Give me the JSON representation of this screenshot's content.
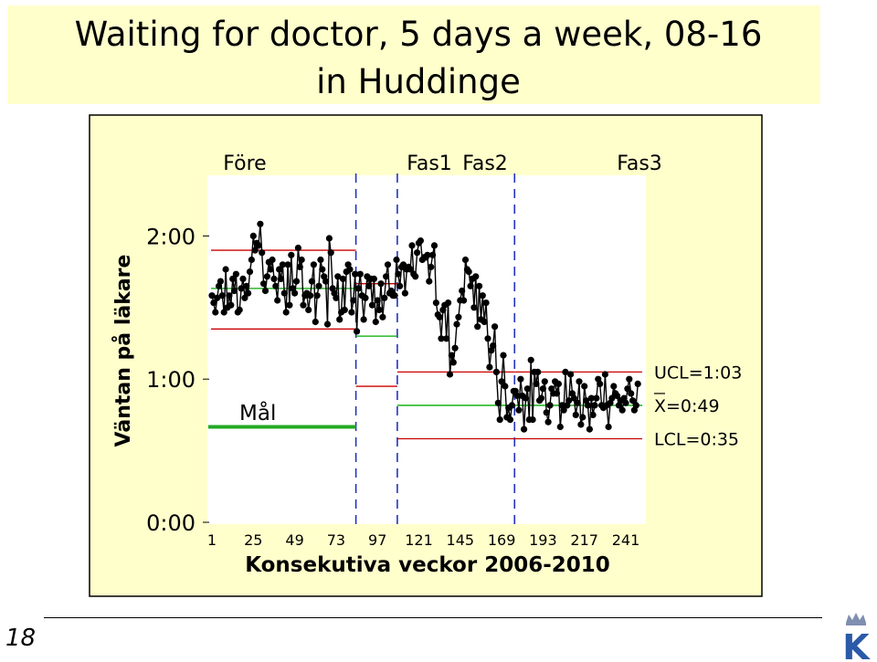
{
  "slide": {
    "title_line1": "Waiting for doctor, 5 days a week, 08-16",
    "title_line2": "in Huddinge",
    "page_number": "18",
    "logo_letter": "K"
  },
  "colors": {
    "panel_bg": "#ffffcc",
    "data_line": "#000000",
    "control_limit": "#cc0000",
    "center_line": "#00aa00",
    "goal_line": "#22aa22",
    "phase_divider": "#2233bb"
  },
  "chart_data": {
    "type": "line",
    "subtype": "control chart (I-chart) by phase",
    "xlabel": "Konsekutiva veckor 2006-2010",
    "ylabel": "Väntan på läkare",
    "x_range": [
      1,
      250
    ],
    "x_ticks": [
      1,
      25,
      49,
      73,
      97,
      121,
      145,
      169,
      193,
      217,
      241
    ],
    "y_range_minutes": [
      0,
      150
    ],
    "y_ticks": [
      {
        "value": 0,
        "label": "0:00"
      },
      {
        "value": 60,
        "label": "1:00"
      },
      {
        "value": 120,
        "label": "2:00"
      }
    ],
    "grid": false,
    "phases": [
      {
        "label": "Före",
        "start": 1,
        "end": 84,
        "ucl": 114,
        "cl": 98,
        "lcl": 81
      },
      {
        "label": "Fas1",
        "start": 85,
        "end": 108,
        "ucl": 100,
        "cl": 78,
        "lcl": 57
      },
      {
        "label": "Fas2",
        "start": 109,
        "end": 176,
        "ucl": 63,
        "cl": 49,
        "lcl": 35
      },
      {
        "label": "Fas3",
        "start": 177,
        "end": 250,
        "ucl": 63,
        "cl": 49,
        "lcl": 35
      }
    ],
    "limit_labels": [
      "UCL=1:03",
      "X=0:49",
      "LCL=0:35"
    ],
    "goal": {
      "label": "Mål",
      "value_minutes": 40,
      "x_start": 1,
      "x_end": 84
    },
    "series": [
      {
        "values": [
          95,
          92,
          88,
          94,
          99,
          101,
          95,
          88,
          106,
          90,
          95,
          91,
          102,
          97,
          104,
          88,
          89,
          98,
          102,
          94,
          99,
          96,
          105,
          110,
          120,
          114,
          117,
          116,
          125,
          113,
          100,
          97,
          103,
          109,
          106,
          110,
          102,
          99,
          93,
          106,
          102,
          108,
          96,
          88,
          108,
          91,
          112,
          98,
          96,
          101,
          115,
          107,
          110,
          91,
          95,
          96,
          89,
          95,
          101,
          108,
          84,
          95,
          99,
          110,
          106,
          103,
          101,
          83,
          119,
          113,
          98,
          96,
          94,
          103,
          85,
          88,
          102,
          89,
          105,
          108,
          106,
          88,
          93,
          104,
          80,
          98,
          104,
          95,
          85,
          94,
          103,
          99,
          102,
          91,
          102,
          84,
          93,
          89,
          100,
          86,
          94,
          103,
          108,
          96,
          97,
          95,
          95,
          110,
          104,
          99,
          107,
          108,
          96,
          106,
          107,
          106,
          116,
          104,
          103,
          113,
          117,
          118,
          110,
          111,
          111,
          112,
          101,
          107,
          112,
          116,
          92,
          87,
          86,
          77,
          89,
          91,
          77,
          92,
          62,
          70,
          67,
          73,
          83,
          86,
          93,
          97,
          93,
          110,
          106,
          105,
          99,
          102,
          90,
          103,
          82,
          99,
          85,
          95,
          84,
          92,
          77,
          65,
          72,
          74,
          82,
          63,
          50,
          43,
          59,
          70,
          57,
          44,
          48,
          43,
          49,
          55,
          55,
          53,
          47,
          60,
          53,
          39,
          52,
          56,
          43,
          68,
          43,
          63,
          58,
          63,
          51,
          52,
          56,
          59,
          46,
          42,
          49,
          56,
          54,
          59,
          54,
          58,
          40,
          49,
          47,
          63,
          49,
          51,
          62,
          54,
          52,
          45,
          50,
          59,
          41,
          44,
          57,
          51,
          49,
          39,
          52,
          45,
          49,
          52,
          60,
          58,
          49,
          48,
          62,
          49,
          40,
          50,
          52,
          57,
          54,
          53,
          49,
          51,
          47,
          52,
          50,
          56,
          60,
          54,
          51,
          47,
          49,
          58
        ]
      }
    ]
  }
}
